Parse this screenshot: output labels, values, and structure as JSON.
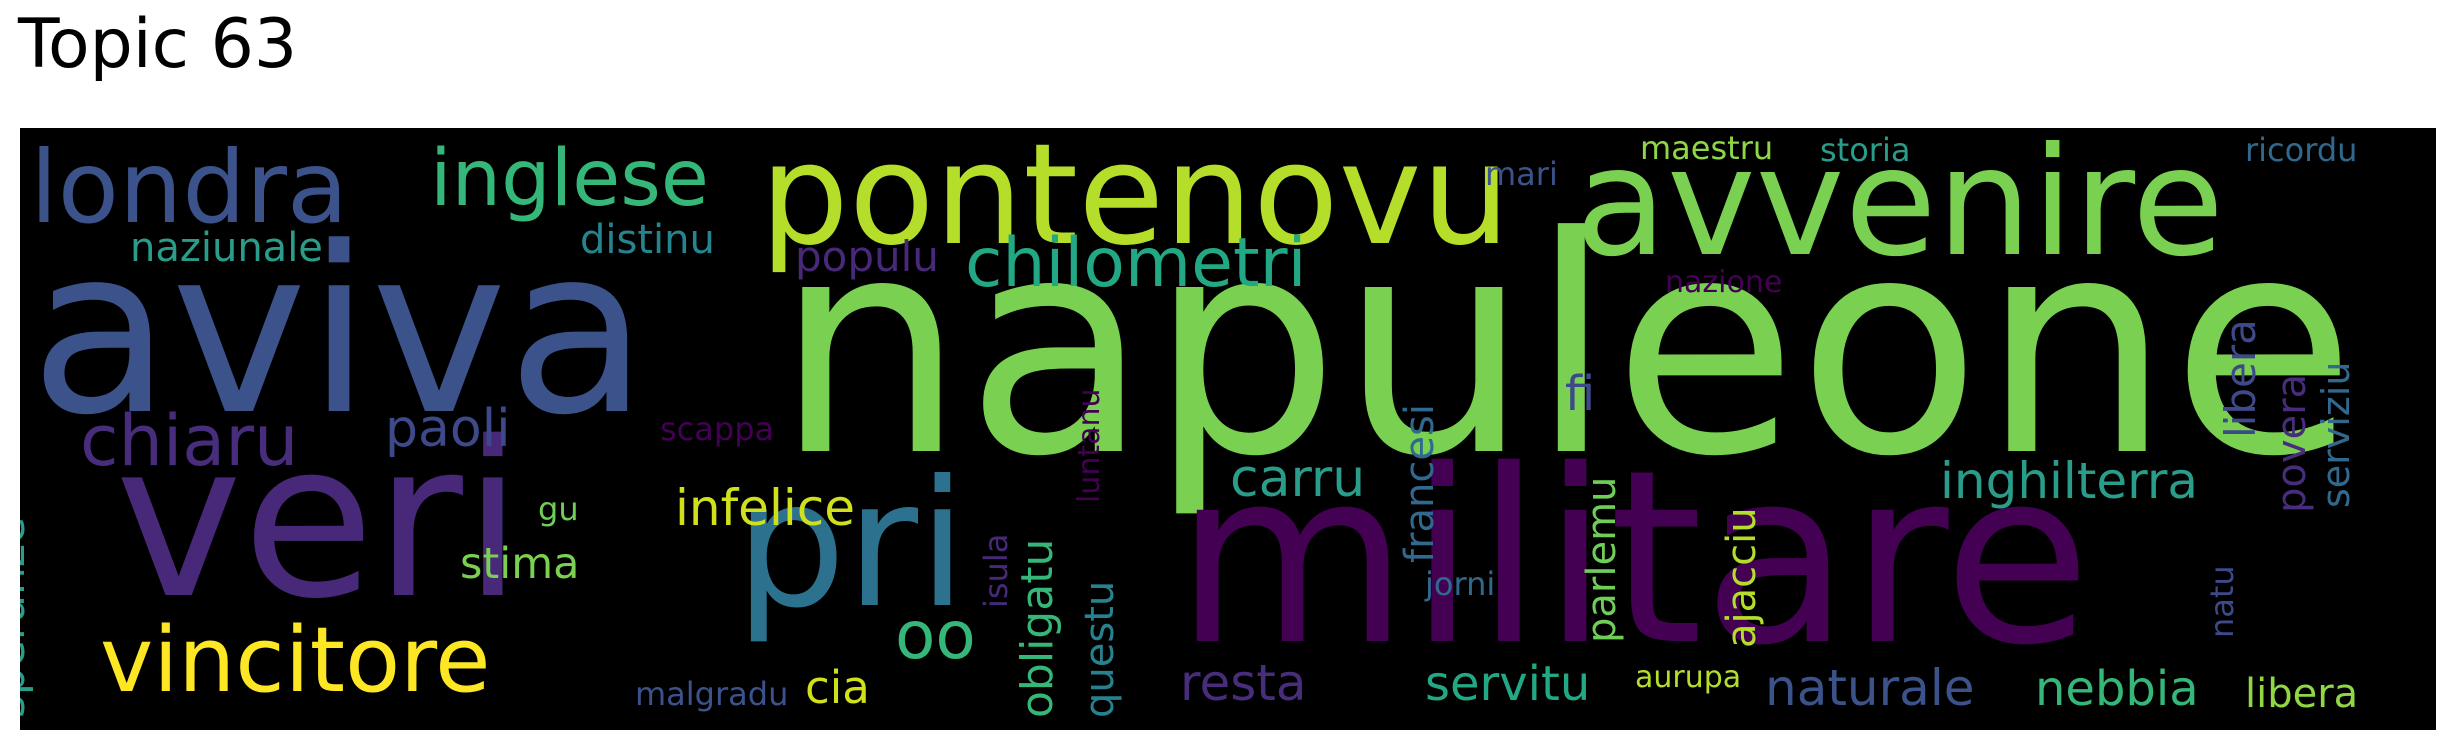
{
  "title": "Topic 63",
  "words": [
    {
      "text": "napuleone",
      "color": "#7ad151"
    },
    {
      "text": "militare",
      "color": "#440154"
    },
    {
      "text": "aviva",
      "color": "#3b528b"
    },
    {
      "text": "veri",
      "color": "#482878"
    },
    {
      "text": "avvenire",
      "color": "#7ad151"
    },
    {
      "text": "pontenovu",
      "color": "#b5de2b"
    },
    {
      "text": "pri",
      "color": "#2c728e"
    },
    {
      "text": "londra",
      "color": "#3b528b"
    },
    {
      "text": "vincitore",
      "color": "#fde725"
    },
    {
      "text": "inglese",
      "color": "#35b779"
    },
    {
      "text": "chilometri",
      "color": "#22a884"
    },
    {
      "text": "chiaru",
      "color": "#472d7b"
    },
    {
      "text": "oo",
      "color": "#35b779"
    },
    {
      "text": "inghilterra",
      "color": "#2a9d8a"
    },
    {
      "text": "naturale",
      "color": "#3b528b"
    },
    {
      "text": "nebbia",
      "color": "#35b779"
    },
    {
      "text": "resta",
      "color": "#472d7b"
    },
    {
      "text": "servitu",
      "color": "#22a884"
    },
    {
      "text": "carru",
      "color": "#2a9d8a"
    },
    {
      "text": "infelice",
      "color": "#d0e11c"
    },
    {
      "text": "paoli",
      "color": "#3e4989"
    },
    {
      "text": "naziunale",
      "color": "#2a9d8a"
    },
    {
      "text": "distinu",
      "color": "#25858e"
    },
    {
      "text": "populu",
      "color": "#482878"
    },
    {
      "text": "libera",
      "color": "#8fd744"
    },
    {
      "text": "cia",
      "color": "#d0e11c"
    },
    {
      "text": "stima",
      "color": "#7ad151"
    },
    {
      "text": "fi",
      "color": "#3e4989"
    },
    {
      "text": "maestru",
      "color": "#8fd744"
    },
    {
      "text": "storia",
      "color": "#2a9d8a"
    },
    {
      "text": "ricordu",
      "color": "#31688e"
    },
    {
      "text": "mari",
      "color": "#3b528b"
    },
    {
      "text": "nazione",
      "color": "#440154"
    },
    {
      "text": "malgradu",
      "color": "#3b528b"
    },
    {
      "text": "scappa",
      "color": "#440154"
    },
    {
      "text": "gu",
      "color": "#6ece58"
    },
    {
      "text": "jorni",
      "color": "#31688e"
    },
    {
      "text": "aurupa",
      "color": "#b5de2b"
    },
    {
      "text": "speranze",
      "color": "#2a9d8a"
    },
    {
      "text": "obligatu",
      "color": "#35b779"
    },
    {
      "text": "questu",
      "color": "#26828e"
    },
    {
      "text": "isula",
      "color": "#482878"
    },
    {
      "text": "luntanu",
      "color": "#440154"
    },
    {
      "text": "francesi",
      "color": "#31688e"
    },
    {
      "text": "parlemu",
      "color": "#6ece58"
    },
    {
      "text": "ajacciu",
      "color": "#b5de2b"
    },
    {
      "text": "libera",
      "color": "#3e4989"
    },
    {
      "text": "povera",
      "color": "#472d7b"
    },
    {
      "text": "serviziu",
      "color": "#31688e"
    },
    {
      "text": "natu",
      "color": "#3e4989"
    }
  ]
}
